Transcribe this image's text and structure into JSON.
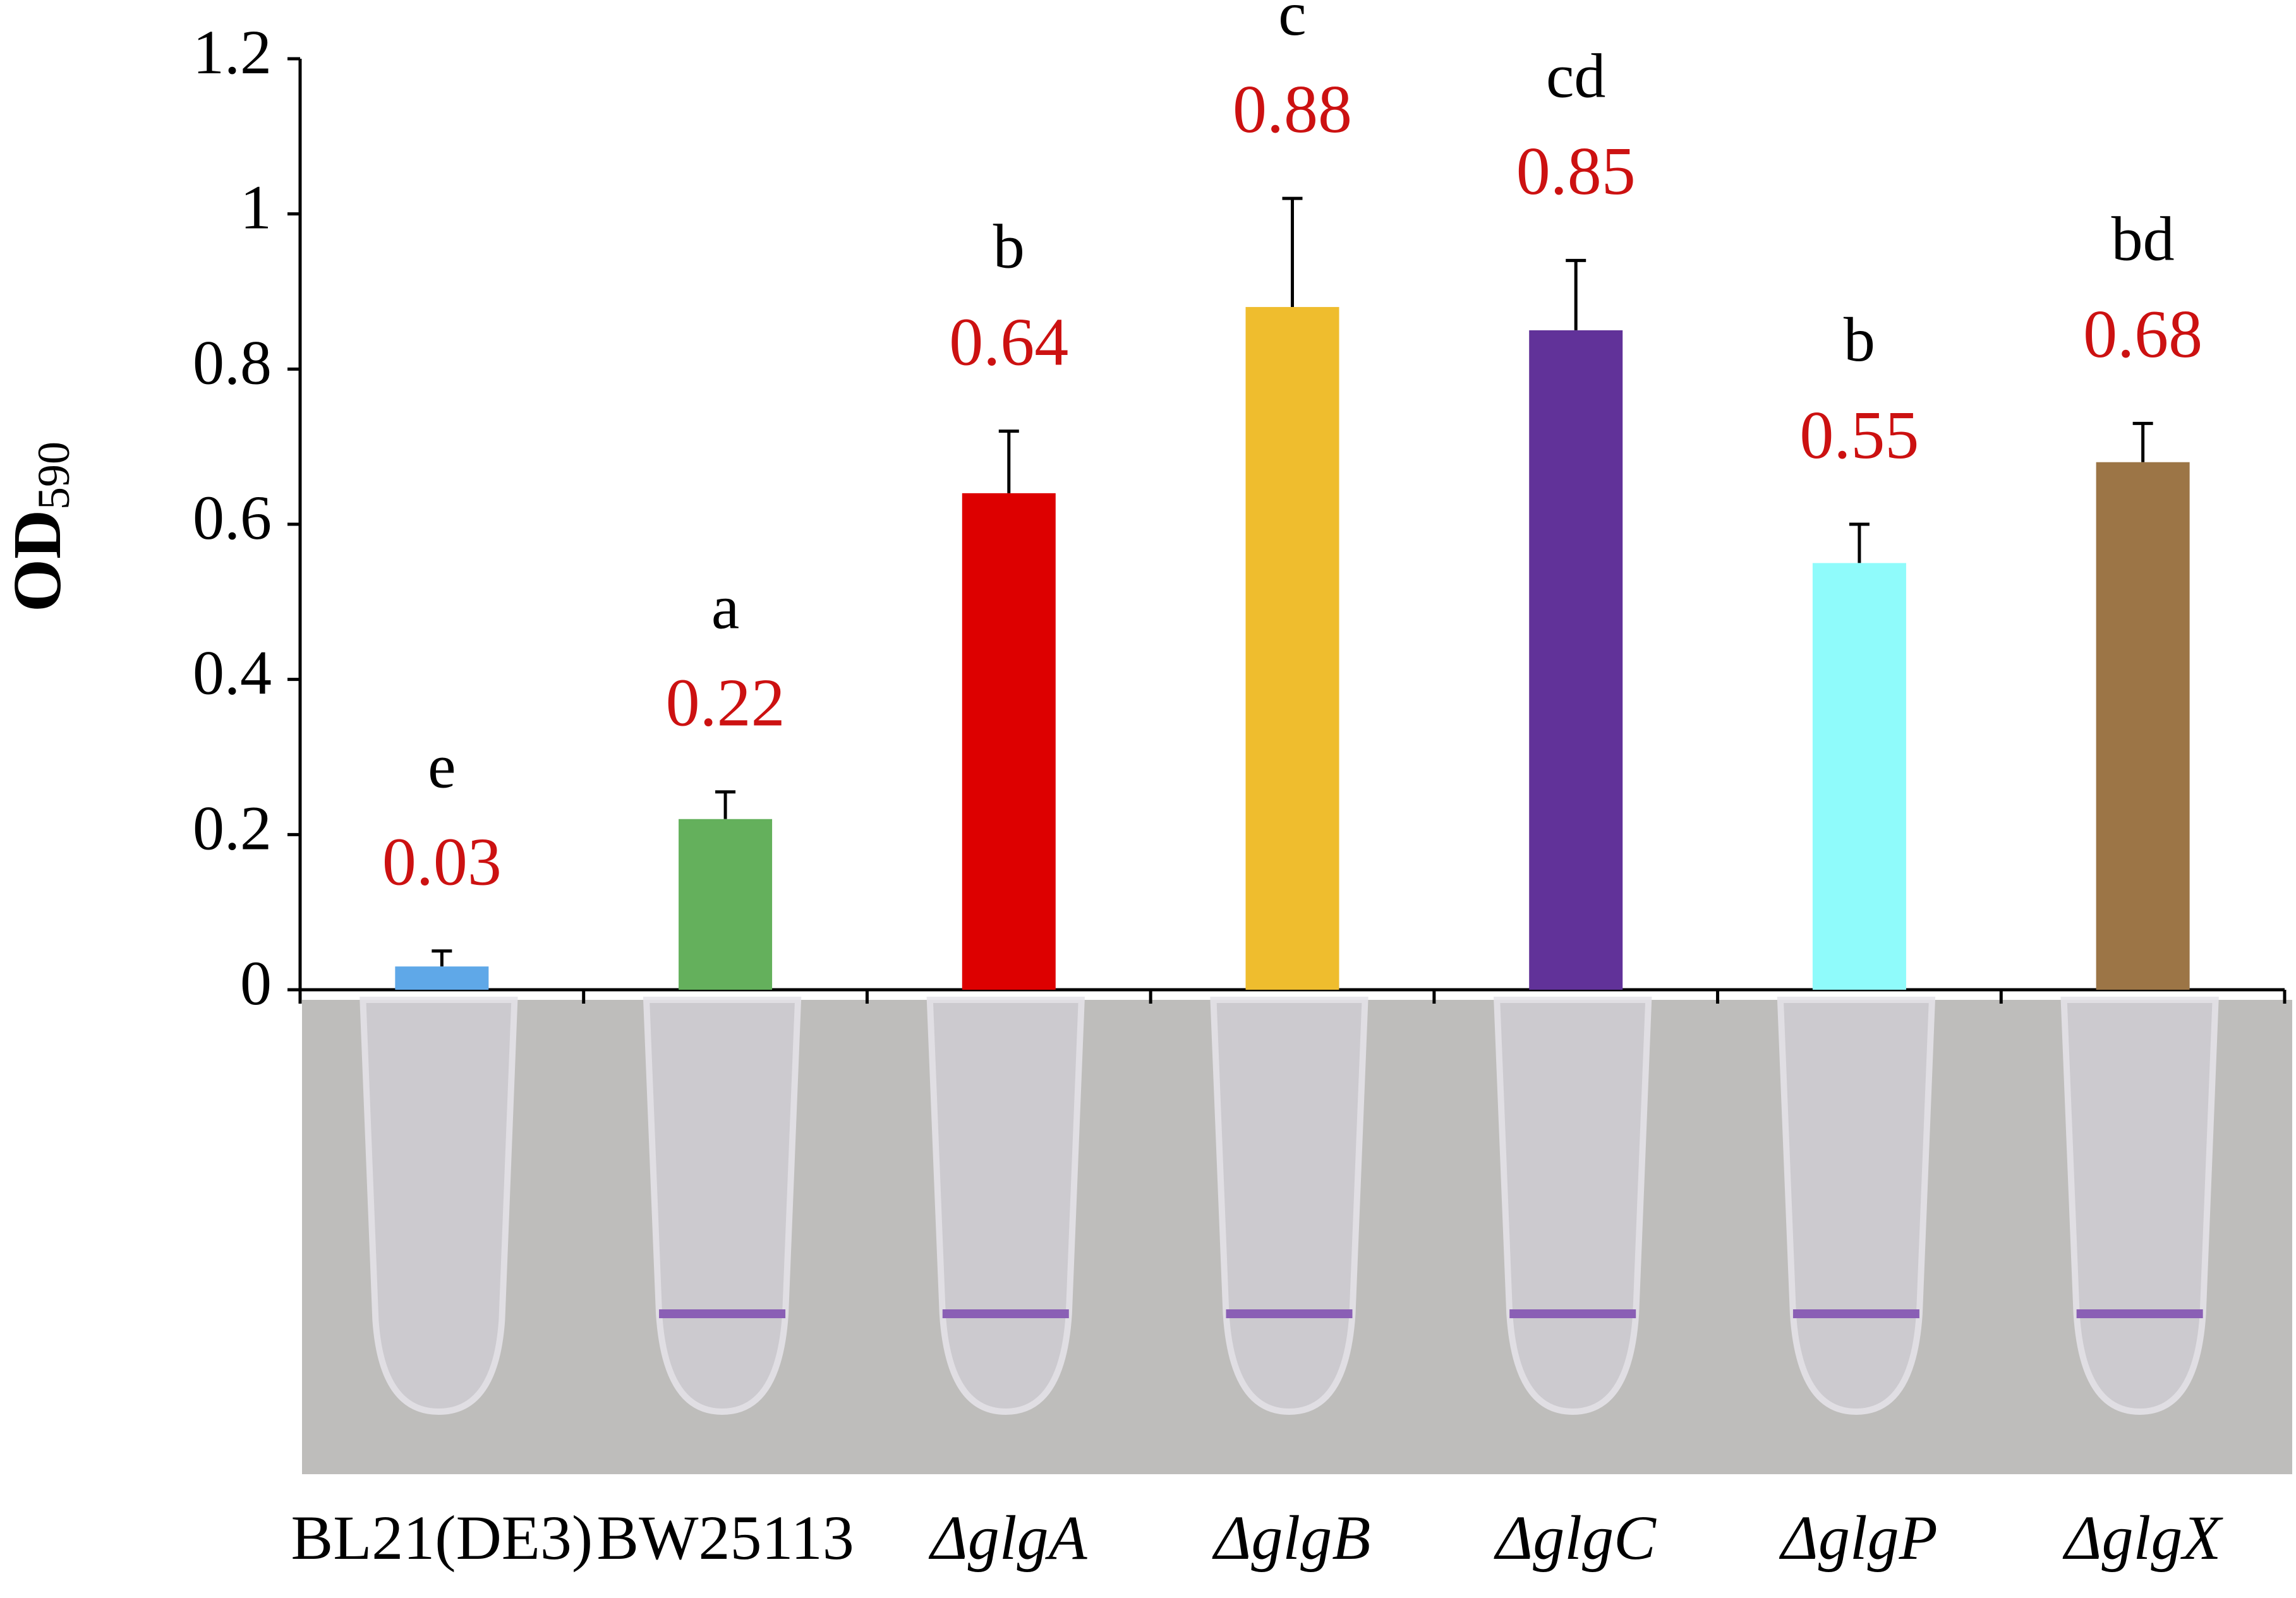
{
  "chart_data": {
    "type": "bar",
    "ylabel": "OD",
    "ylabel_subscript": "590",
    "categories": [
      "BL21(DE3)",
      "BW25113",
      "ΔglgA",
      "ΔglgB",
      "ΔglgC",
      "ΔglgP",
      "ΔglgX"
    ],
    "values": [
      0.03,
      0.22,
      0.64,
      0.88,
      0.85,
      0.55,
      0.68
    ],
    "errors": [
      0.02,
      0.035,
      0.08,
      0.14,
      0.09,
      0.05,
      0.05
    ],
    "significance_letters": [
      "e",
      "a",
      "b",
      "c",
      "cd",
      "b",
      "bd"
    ],
    "colors": [
      "#5fa8e8",
      "#64b05c",
      "#dd0000",
      "#efbd2e",
      "#613299",
      "#8ffbfb",
      "#9c7546"
    ],
    "value_label_color": "#cc1111",
    "ylim": [
      0,
      1.2
    ],
    "yticks": [
      0,
      0.2,
      0.4,
      0.6,
      0.8,
      1,
      1.2
    ]
  }
}
